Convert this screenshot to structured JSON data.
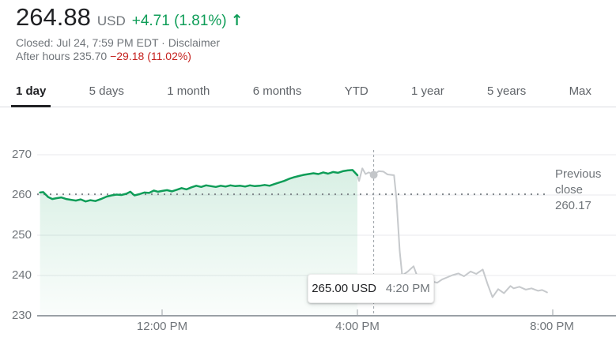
{
  "header": {
    "price": "264.88",
    "currency": "USD",
    "change": "+4.71 (1.81%)",
    "market_status": "Closed: Jul 24, 7:59 PM EDT",
    "separator": "·",
    "disclaimer_label": "Disclaimer",
    "after_hours": {
      "label": "After hours",
      "price": "235.70",
      "change": "−29.18 (11.02%)"
    }
  },
  "tabs": {
    "items": [
      {
        "label": "1 day",
        "active": true
      },
      {
        "label": "5 days",
        "active": false
      },
      {
        "label": "1 month",
        "active": false
      },
      {
        "label": "6 months",
        "active": false
      },
      {
        "label": "YTD",
        "active": false
      },
      {
        "label": "1 year",
        "active": false
      },
      {
        "label": "5 years",
        "active": false
      },
      {
        "label": "Max",
        "active": false
      }
    ]
  },
  "colors": {
    "positive_green": "#0f9d58",
    "negative_red": "#c5221f",
    "chart_line_green": "#0f9d58",
    "after_hours_line_gray": "#c6c9cc",
    "hover_dot_gray": "#c3c6c9",
    "grid_line_gray": "#e8eaed",
    "axis_line_gray": "#9aa0a6",
    "dotted_line_gray": "#80868b"
  },
  "chart_data": {
    "type": "line",
    "x_axis": {
      "unit": "minutes_since_midnight",
      "range": [
        570,
        1230
      ],
      "ticks": [
        {
          "t": 720,
          "label": "12:00 PM"
        },
        {
          "t": 960,
          "label": "4:00 PM"
        },
        {
          "t": 1200,
          "label": "8:00 PM"
        }
      ]
    },
    "y_axis": {
      "ticks": [
        270,
        260,
        250,
        240,
        230
      ],
      "range": [
        229,
        271.5
      ]
    },
    "previous_close": {
      "value": 260.17,
      "label": "Previous close 260.17"
    },
    "hover": {
      "t": 980,
      "price": 265.0,
      "price_label": "265.00 USD",
      "time_label": "4:20 PM"
    },
    "series": [
      {
        "name": "market-hours",
        "fill": true,
        "points": [
          [
            570,
            260.6
          ],
          [
            574,
            260.7
          ],
          [
            580,
            259.5
          ],
          [
            585,
            259.0
          ],
          [
            590,
            259.2
          ],
          [
            596,
            259.4
          ],
          [
            602,
            259.0
          ],
          [
            608,
            258.8
          ],
          [
            614,
            258.6
          ],
          [
            620,
            258.9
          ],
          [
            626,
            258.4
          ],
          [
            632,
            258.7
          ],
          [
            638,
            258.5
          ],
          [
            645,
            259.0
          ],
          [
            652,
            259.6
          ],
          [
            658,
            259.9
          ],
          [
            664,
            260.1
          ],
          [
            670,
            260.0
          ],
          [
            676,
            260.3
          ],
          [
            681,
            260.8
          ],
          [
            686,
            259.9
          ],
          [
            692,
            260.2
          ],
          [
            698,
            260.6
          ],
          [
            704,
            260.5
          ],
          [
            710,
            261.1
          ],
          [
            715,
            260.8
          ],
          [
            720,
            261.0
          ],
          [
            726,
            261.2
          ],
          [
            732,
            260.9
          ],
          [
            738,
            261.3
          ],
          [
            744,
            261.7
          ],
          [
            750,
            261.4
          ],
          [
            756,
            261.9
          ],
          [
            762,
            262.3
          ],
          [
            768,
            262.0
          ],
          [
            774,
            262.4
          ],
          [
            780,
            262.2
          ],
          [
            786,
            262.0
          ],
          [
            792,
            262.3
          ],
          [
            798,
            262.1
          ],
          [
            804,
            262.4
          ],
          [
            810,
            262.2
          ],
          [
            816,
            262.3
          ],
          [
            822,
            262.1
          ],
          [
            828,
            262.4
          ],
          [
            834,
            262.2
          ],
          [
            840,
            262.3
          ],
          [
            846,
            262.5
          ],
          [
            852,
            262.3
          ],
          [
            858,
            262.7
          ],
          [
            864,
            263.1
          ],
          [
            870,
            263.5
          ],
          [
            876,
            264.0
          ],
          [
            882,
            264.4
          ],
          [
            888,
            264.7
          ],
          [
            894,
            265.0
          ],
          [
            900,
            265.2
          ],
          [
            906,
            265.4
          ],
          [
            912,
            265.2
          ],
          [
            918,
            265.6
          ],
          [
            924,
            265.3
          ],
          [
            930,
            265.7
          ],
          [
            936,
            265.5
          ],
          [
            942,
            265.9
          ],
          [
            948,
            266.1
          ],
          [
            954,
            266.2
          ],
          [
            960,
            264.9
          ]
        ]
      },
      {
        "name": "after-hours",
        "fill": false,
        "points": [
          [
            960,
            264.9
          ],
          [
            962,
            263.5
          ],
          [
            966,
            266.6
          ],
          [
            970,
            265.2
          ],
          [
            974,
            265.6
          ],
          [
            980,
            265.0
          ],
          [
            986,
            265.9
          ],
          [
            992,
            265.8
          ],
          [
            997,
            265.1
          ],
          [
            1001,
            265.0
          ],
          [
            1005,
            264.9
          ],
          [
            1008,
            259.0
          ],
          [
            1012,
            246.0
          ],
          [
            1015,
            240.0
          ],
          [
            1022,
            241.0
          ],
          [
            1029,
            242.3
          ],
          [
            1034,
            239.5
          ],
          [
            1040,
            238.8
          ],
          [
            1046,
            239.2
          ],
          [
            1052,
            238.5
          ],
          [
            1058,
            238.2
          ],
          [
            1064,
            239.0
          ],
          [
            1070,
            239.5
          ],
          [
            1077,
            240.1
          ],
          [
            1084,
            240.5
          ],
          [
            1091,
            239.8
          ],
          [
            1099,
            241.0
          ],
          [
            1106,
            240.4
          ],
          [
            1114,
            241.5
          ],
          [
            1120,
            237.8
          ],
          [
            1126,
            234.6
          ],
          [
            1133,
            236.6
          ],
          [
            1140,
            235.6
          ],
          [
            1148,
            237.4
          ],
          [
            1152,
            236.8
          ],
          [
            1159,
            237.2
          ],
          [
            1167,
            236.5
          ],
          [
            1174,
            236.8
          ],
          [
            1182,
            236.2
          ],
          [
            1187,
            236.4
          ],
          [
            1193,
            235.8
          ]
        ]
      }
    ]
  }
}
